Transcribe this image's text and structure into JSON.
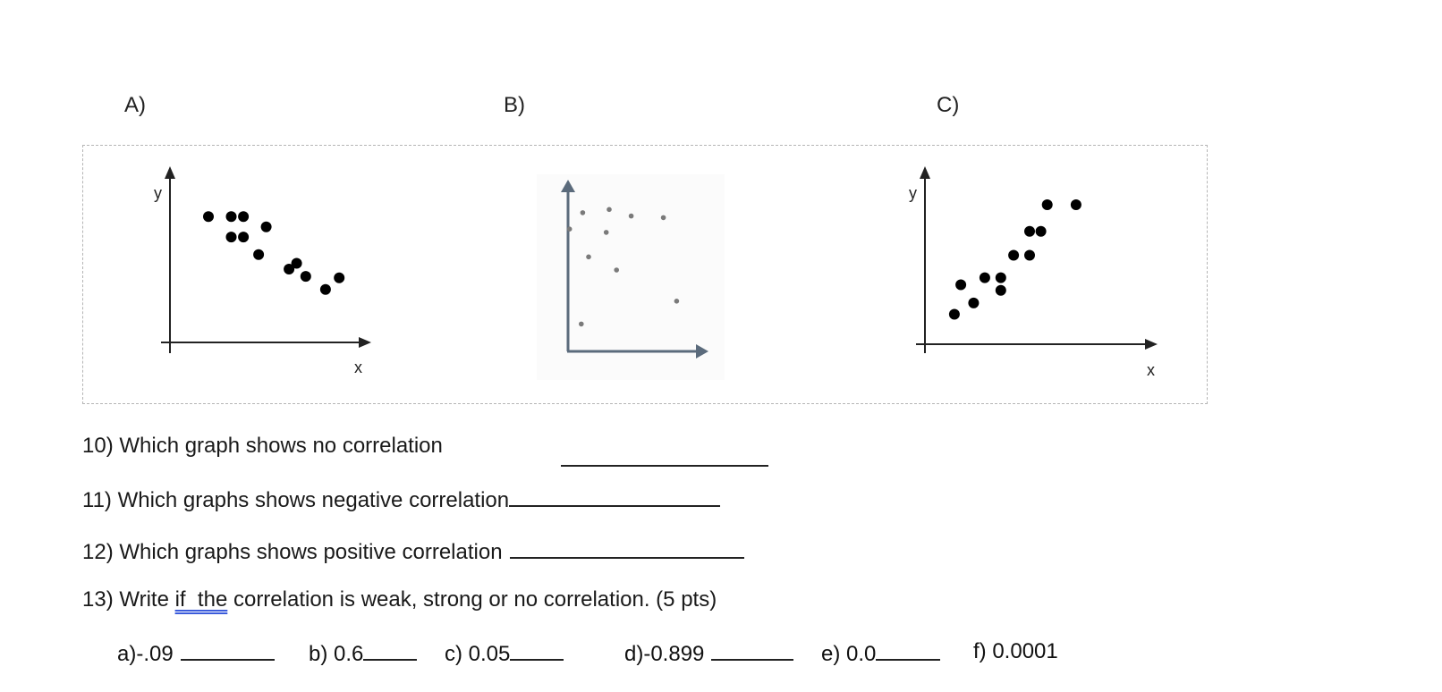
{
  "graph_labels": {
    "a": "A)",
    "b": "B)",
    "c": "C)"
  },
  "axis_labels": {
    "y": "y",
    "x": "x"
  },
  "graphs": {
    "a": {
      "trend": "negative",
      "points": [
        [
          1,
          9
        ],
        [
          2.5,
          9
        ],
        [
          3.3,
          9
        ],
        [
          4.8,
          8.3
        ],
        [
          2.5,
          7.6
        ],
        [
          3.3,
          7.6
        ],
        [
          4.3,
          6.4
        ],
        [
          6.8,
          5.8
        ],
        [
          6.3,
          5.4
        ],
        [
          7.4,
          4.9
        ],
        [
          9.6,
          4.8
        ],
        [
          8.7,
          4
        ]
      ]
    },
    "b": {
      "trend": "none",
      "points": [
        [
          1.2,
          7.2
        ],
        [
          2.1,
          8.2
        ],
        [
          3.9,
          8.4
        ],
        [
          5.4,
          8
        ],
        [
          3.7,
          7
        ],
        [
          2.5,
          5.5
        ],
        [
          4.4,
          4.7
        ],
        [
          7.6,
          7.9
        ],
        [
          8.5,
          2.8
        ],
        [
          2,
          1.4
        ]
      ]
    },
    "c": {
      "trend": "positive",
      "points": [
        [
          1,
          2.2
        ],
        [
          1.4,
          4.3
        ],
        [
          2.2,
          3
        ],
        [
          2.9,
          4.8
        ],
        [
          3.9,
          4.8
        ],
        [
          3.9,
          3.9
        ],
        [
          4.7,
          6.4
        ],
        [
          5.7,
          6.4
        ],
        [
          5.7,
          8.1
        ],
        [
          6.4,
          8.1
        ],
        [
          6.8,
          10
        ],
        [
          8.6,
          10
        ]
      ]
    }
  },
  "questions": {
    "q10": "10) Which graph shows no correlation",
    "q11": "11) Which graphs shows negative correlation",
    "q12": "12) Which graphs shows positive correlation",
    "q13_before": "13) Write ",
    "q13_underlined": "if  the",
    "q13_after": " correlation is weak, strong or no correlation. (5 pts)"
  },
  "choices": {
    "a": "a)-.09",
    "b": "b) 0.6",
    "c": "c) 0.05",
    "d": "d)-0.899",
    "e": "e) 0.0",
    "f": "f) 0.0001"
  },
  "colors": {
    "dot": "#000000",
    "axis_dark": "#222222",
    "axis_b": "#5b6b7c",
    "dot_b": "#7a7a7a"
  }
}
